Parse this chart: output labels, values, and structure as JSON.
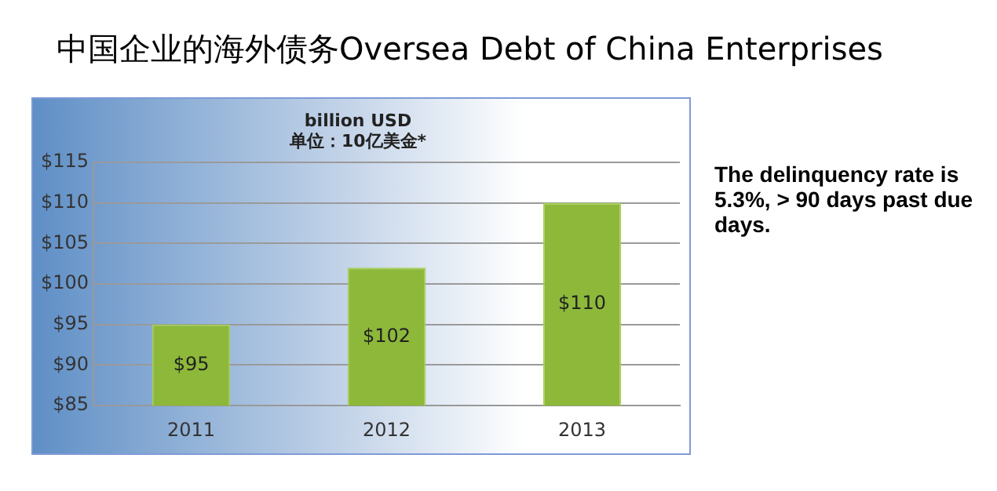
{
  "chart_data": {
    "type": "bar",
    "title": "中国企业的海外债务Oversea Debt of China Enterprises",
    "subtitle": "billion USD",
    "annotations": [
      "单位：10亿美金*",
      "The delinquency rate is 5.3%, > 90 days past due days."
    ],
    "categories": [
      "2011",
      "2012",
      "2013"
    ],
    "values": [
      95,
      102,
      110
    ],
    "color": "#8db83a",
    "value_labels": [
      "$95",
      "$102",
      "$110"
    ],
    "ylim": [
      85,
      115
    ],
    "yticks": [
      {
        "value": 85,
        "label": "$85"
      },
      {
        "value": 90,
        "label": "$90"
      },
      {
        "value": 95,
        "label": "$95"
      },
      {
        "value": 100,
        "label": "$100"
      },
      {
        "value": 105,
        "label": "$105"
      },
      {
        "value": 110,
        "label": "$110"
      },
      {
        "value": 115,
        "label": "$115"
      }
    ],
    "grid": "y",
    "legend": false
  }
}
